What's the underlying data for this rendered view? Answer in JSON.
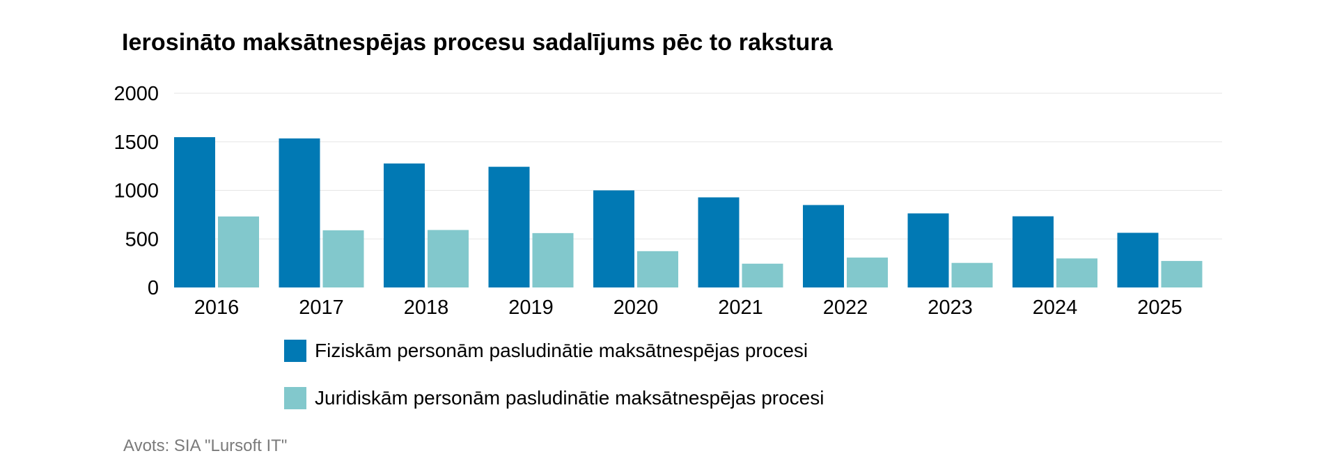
{
  "chart_data": {
    "type": "bar",
    "title": "Ierosināto maksātnespējas procesu sadalījums pēc to rakstura",
    "categories": [
      "2016",
      "2017",
      "2018",
      "2019",
      "2020",
      "2021",
      "2022",
      "2023",
      "2024",
      "2025"
    ],
    "series": [
      {
        "name": "Fiziskām personām pasludinātie maksātnespējas procesi",
        "color": "#0179b4",
        "values": [
          1548,
          1535,
          1277,
          1243,
          1000,
          928,
          849,
          763,
          733,
          563
        ]
      },
      {
        "name": "Juridiskām personām pasludinātie maksātnespējas procesi",
        "color": "#82c8cc",
        "values": [
          731,
          589,
          592,
          560,
          374,
          245,
          308,
          253,
          299,
          273
        ]
      }
    ],
    "ylim": [
      0,
      2000
    ],
    "yticks": [
      "0",
      "500",
      "1000",
      "1500",
      "2000"
    ],
    "xlabel": "",
    "ylabel": "",
    "grid": true,
    "legend_position": "bottom"
  },
  "source": "Avots: SIA \"Lursoft IT\""
}
